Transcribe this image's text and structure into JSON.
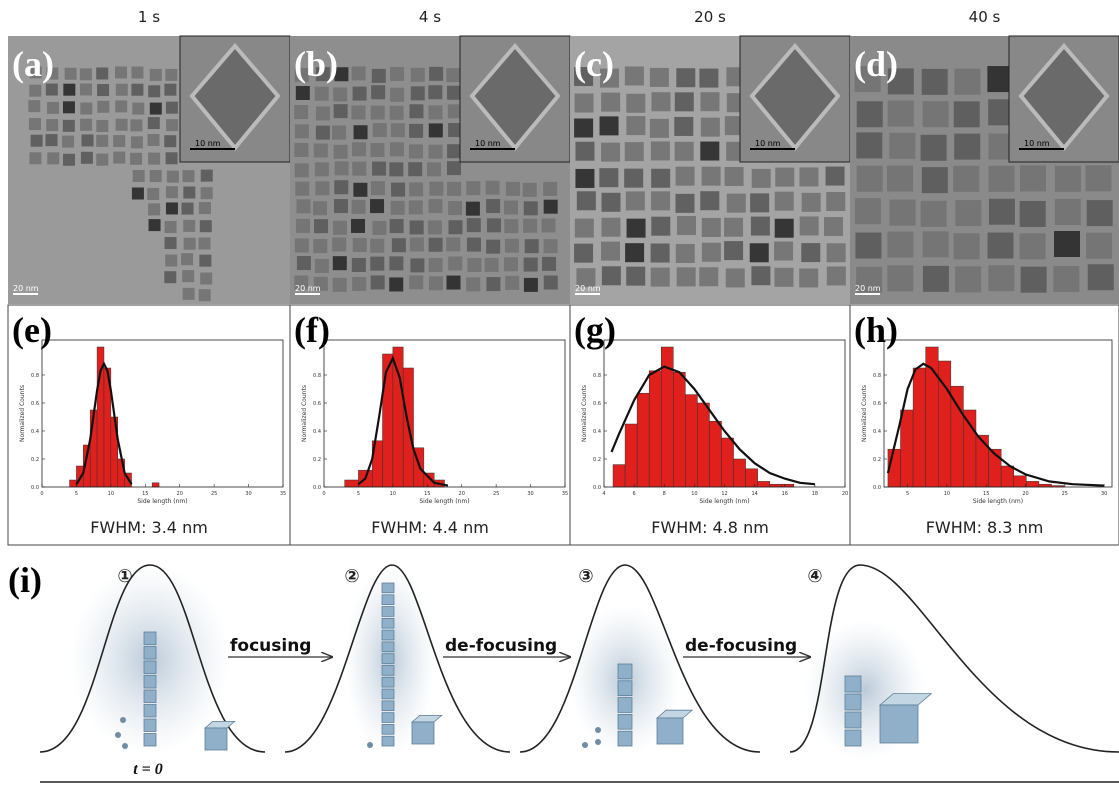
{
  "time_labels": [
    "1 s",
    "4 s",
    "20 s",
    "40 s"
  ],
  "micrographs": [
    {
      "label": "(a)",
      "scale_bar": "20 nm",
      "inset_scale_bar": "10 nm"
    },
    {
      "label": "(b)",
      "scale_bar": "20 nm",
      "inset_scale_bar": "10 nm"
    },
    {
      "label": "(c)",
      "scale_bar": "20 nm",
      "inset_scale_bar": "10 nm"
    },
    {
      "label": "(d)",
      "scale_bar": "20 nm",
      "inset_scale_bar": "10 nm"
    }
  ],
  "chart_data": [
    {
      "type": "histogram",
      "panel_label": "(e)",
      "x_label": "Side length (nm)",
      "y_label": "Normalized Counts",
      "color": "#e0201c",
      "bins": [
        4,
        5,
        6,
        7,
        8,
        9,
        10,
        11,
        12,
        13,
        14,
        15,
        16,
        17
      ],
      "values": [
        0.05,
        0.15,
        0.3,
        0.55,
        1.0,
        0.85,
        0.5,
        0.2,
        0.1,
        0,
        0,
        0,
        0.03
      ],
      "fit": {
        "x": [
          5,
          6,
          7,
          8,
          8.5,
          9,
          9.5,
          10,
          11,
          12,
          13
        ],
        "y": [
          0.02,
          0.1,
          0.34,
          0.69,
          0.83,
          0.88,
          0.83,
          0.69,
          0.34,
          0.1,
          0.02
        ]
      },
      "xlim": [
        0,
        35
      ],
      "xticks": [
        0,
        5,
        10,
        15,
        20,
        25,
        30,
        35
      ],
      "ylim": [
        0,
        1.05
      ],
      "yticks": [
        {
          "value": 0,
          "label": "0.0"
        },
        0.2,
        0.4,
        0.6,
        0.8
      ],
      "annotation": "FWHM: 3.4 nm"
    },
    {
      "type": "histogram",
      "panel_label": "(f)",
      "x_label": "Side length (nm)",
      "y_label": "Normalized Counts",
      "color": "#e0201c",
      "bins": [
        3,
        5,
        7,
        8.5,
        10,
        11.5,
        13,
        14.5,
        16,
        17.5
      ],
      "values": [
        0.05,
        0.12,
        0.33,
        0.95,
        1.0,
        0.85,
        0.28,
        0.1,
        0.05
      ],
      "fit": {
        "x": [
          5,
          6,
          7,
          8,
          9,
          10,
          11,
          12,
          13,
          14,
          16,
          18
        ],
        "y": [
          0.02,
          0.06,
          0.2,
          0.5,
          0.82,
          0.92,
          0.78,
          0.5,
          0.27,
          0.13,
          0.03,
          0.01
        ]
      },
      "xlim": [
        0,
        35
      ],
      "xticks": [
        0,
        5,
        10,
        15,
        20,
        25,
        30,
        35
      ],
      "ylim": [
        0,
        1.05
      ],
      "yticks": [
        {
          "value": 0,
          "label": "0.0"
        },
        0.2,
        0.4,
        0.6,
        0.8
      ],
      "annotation": "FWHM: 4.4 nm"
    },
    {
      "type": "histogram",
      "panel_label": "(g)",
      "x_label": "Side length (nm)",
      "y_label": "Normalized Counts",
      "color": "#e0201c",
      "bins": [
        4.6,
        5.4,
        6.2,
        7.0,
        7.8,
        8.6,
        9.4,
        10.2,
        11.0,
        11.8,
        12.6,
        13.4,
        14.2,
        15.0,
        15.8,
        16.6
      ],
      "values": [
        0.16,
        0.45,
        0.67,
        0.83,
        1.0,
        0.82,
        0.66,
        0.6,
        0.47,
        0.35,
        0.2,
        0.13,
        0.04,
        0.02,
        0.02
      ],
      "fit": {
        "x": [
          4.5,
          5,
          6,
          7,
          8,
          9,
          10,
          11,
          12,
          13,
          14,
          15,
          16,
          17,
          18
        ],
        "y": [
          0.25,
          0.38,
          0.62,
          0.8,
          0.86,
          0.82,
          0.7,
          0.55,
          0.4,
          0.27,
          0.17,
          0.1,
          0.06,
          0.03,
          0.02
        ]
      },
      "xlim": [
        4,
        20
      ],
      "xticks": [
        4,
        6,
        8,
        10,
        12,
        14,
        16,
        18,
        20
      ],
      "ylim": [
        0,
        1.05
      ],
      "yticks": [
        {
          "value": 0,
          "label": "0.0"
        },
        0.2,
        0.4,
        0.6,
        0.8
      ],
      "annotation": "FWHM: 4.8 nm"
    },
    {
      "type": "histogram",
      "panel_label": "(h)",
      "x_label": "Side length (nm)",
      "y_label": "Normalized Counts",
      "color": "#e0201c",
      "bins": [
        2.5,
        4.1,
        5.7,
        7.3,
        8.9,
        10.5,
        12.1,
        13.7,
        15.3,
        16.9,
        18.5,
        20.1,
        21.7,
        23.3,
        24.9
      ],
      "values": [
        0.27,
        0.55,
        0.85,
        1.0,
        0.9,
        0.72,
        0.55,
        0.37,
        0.27,
        0.15,
        0.08,
        0.04,
        0.02,
        0.01
      ],
      "fit": {
        "x": [
          2.5,
          4,
          5,
          6,
          7,
          8,
          10,
          12,
          14,
          16,
          18,
          20,
          23,
          26,
          30
        ],
        "y": [
          0.1,
          0.45,
          0.7,
          0.84,
          0.88,
          0.85,
          0.7,
          0.52,
          0.36,
          0.24,
          0.15,
          0.09,
          0.04,
          0.02,
          0.01
        ]
      },
      "xlim": [
        2,
        31
      ],
      "xticks": [
        5,
        10,
        15,
        20,
        25,
        30
      ],
      "ylim": [
        0,
        1.05
      ],
      "yticks": [
        {
          "value": 0,
          "label": "0.0"
        },
        0.2,
        0.4,
        0.6,
        0.8
      ],
      "annotation": "FWHM: 8.3 nm"
    }
  ],
  "schematic": {
    "label": "(i)",
    "stages": [
      "①",
      "②",
      "③",
      "④"
    ],
    "arrows": [
      "focusing",
      "de-focusing",
      "de-focusing"
    ],
    "time_note": "t = 0"
  }
}
